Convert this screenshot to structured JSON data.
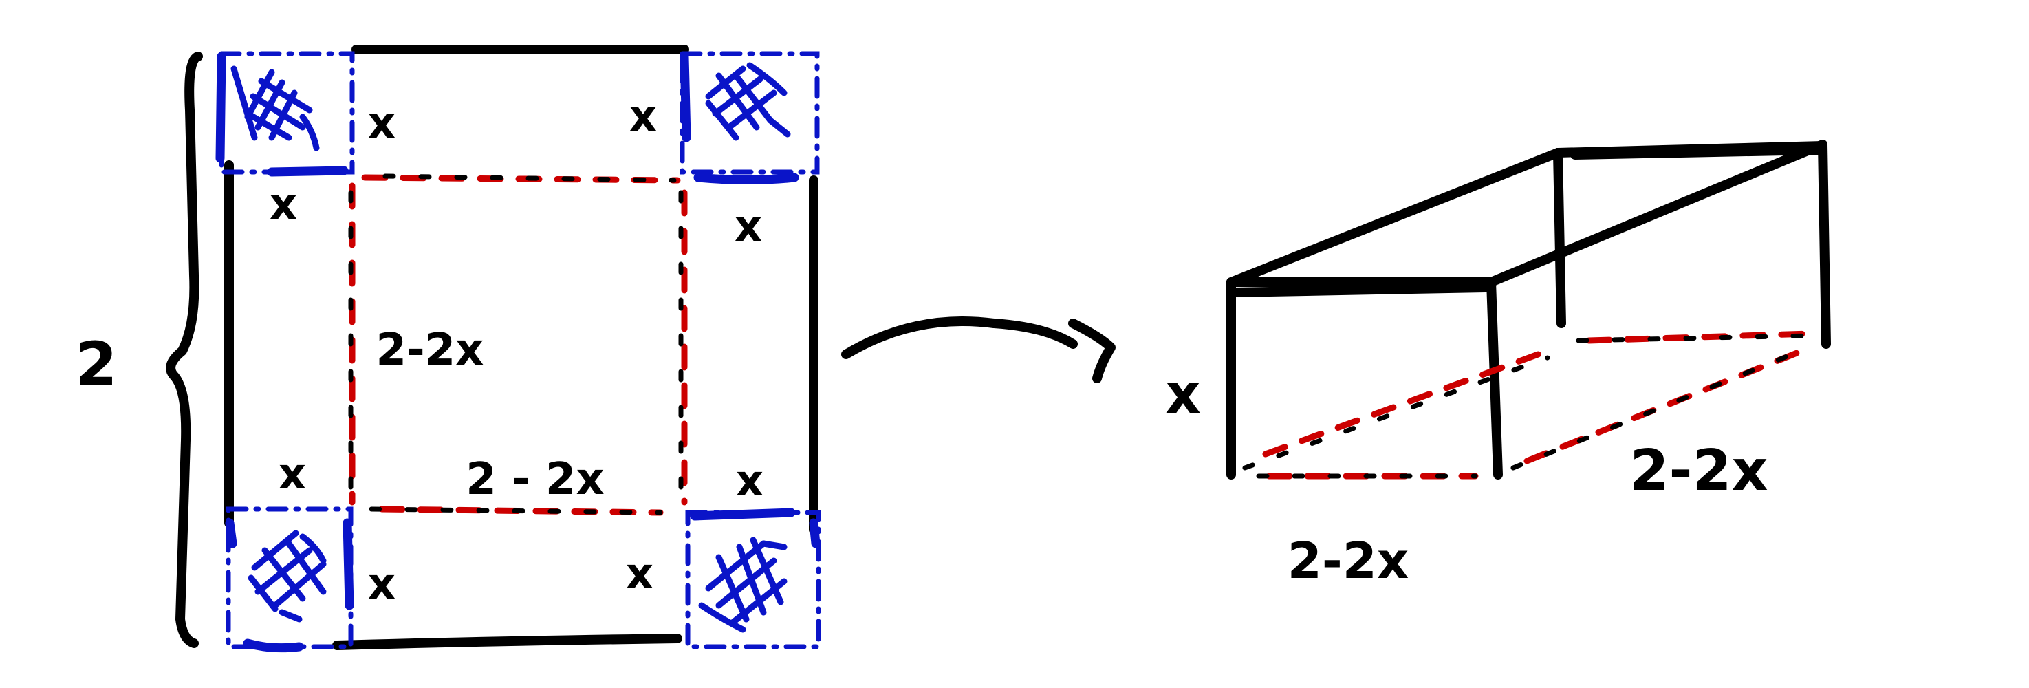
{
  "diagram": {
    "sheet": {
      "side_label": "2",
      "corner_labels": [
        "x",
        "x",
        "x",
        "x",
        "x",
        "x",
        "x",
        "x"
      ],
      "inner_height_label": "2-2x",
      "inner_width_label": "2 - 2x"
    },
    "box": {
      "height_label": "x",
      "depth_label": "2-2x",
      "width_label": "2-2x"
    },
    "colors": {
      "cut_squares": "#0a14c8",
      "fold_lines": "#cc0000",
      "outline": "#000000"
    }
  }
}
